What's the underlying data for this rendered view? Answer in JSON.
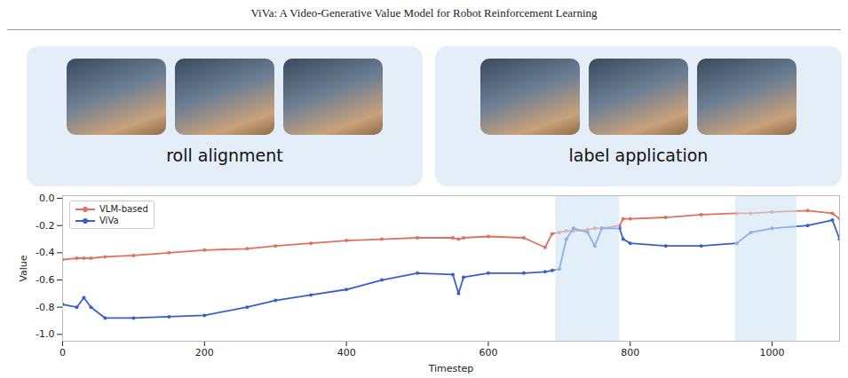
{
  "header": "ViVa: A Video-Generative Value Model for Robot Reinforcement Learning",
  "panels": [
    "roll alignment",
    "label application"
  ],
  "chart_data": {
    "type": "line",
    "x_label": "Timestep",
    "y_label": "Value",
    "x": [
      0,
      20,
      30,
      40,
      60,
      100,
      150,
      200,
      260,
      300,
      350,
      400,
      450,
      500,
      550,
      558,
      565,
      600,
      650,
      680,
      690,
      700,
      710,
      720,
      740,
      750,
      760,
      785,
      790,
      800,
      850,
      900,
      950,
      970,
      1000,
      1050,
      1085,
      1095
    ],
    "series": [
      {
        "name": "VLM-based",
        "color": "#e0705f",
        "marker": "o",
        "values": [
          -0.45,
          -0.44,
          -0.44,
          -0.44,
          -0.43,
          -0.42,
          -0.4,
          -0.38,
          -0.37,
          -0.35,
          -0.33,
          -0.31,
          -0.3,
          -0.29,
          -0.29,
          -0.3,
          -0.29,
          -0.28,
          -0.29,
          -0.36,
          -0.26,
          -0.25,
          -0.24,
          -0.24,
          -0.23,
          -0.22,
          -0.22,
          -0.2,
          -0.15,
          -0.15,
          -0.14,
          -0.12,
          -0.11,
          -0.11,
          -0.1,
          -0.09,
          -0.11,
          -0.15
        ]
      },
      {
        "name": "ViVa",
        "color": "#3a5fc8",
        "marker": "o",
        "values": [
          -0.78,
          -0.8,
          -0.73,
          -0.8,
          -0.88,
          -0.88,
          -0.87,
          -0.86,
          -0.8,
          -0.75,
          -0.71,
          -0.67,
          -0.6,
          -0.55,
          -0.56,
          -0.7,
          -0.58,
          -0.55,
          -0.55,
          -0.54,
          -0.53,
          -0.52,
          -0.3,
          -0.22,
          -0.25,
          -0.35,
          -0.22,
          -0.22,
          -0.3,
          -0.33,
          -0.35,
          -0.35,
          -0.33,
          -0.25,
          -0.22,
          -0.2,
          -0.16,
          -0.3
        ]
      }
    ],
    "highlights": [
      [
        695,
        785
      ],
      [
        948,
        1035
      ]
    ],
    "xlim": [
      0,
      1095
    ],
    "xticks": [
      0,
      200,
      400,
      600,
      800,
      1000
    ],
    "ylim": [
      -1.05,
      0.02
    ],
    "yticks": [
      {
        "value": -1.0,
        "label": "-1.0"
      },
      {
        "value": -0.8,
        "label": "-0.8"
      },
      {
        "value": -0.6,
        "label": "-0.6"
      },
      {
        "value": -0.4,
        "label": "-0.4"
      },
      {
        "value": -0.2,
        "label": "-0.2"
      },
      {
        "value": 0.0,
        "label": "0.0"
      }
    ],
    "grid": false,
    "legend": "upper left"
  }
}
